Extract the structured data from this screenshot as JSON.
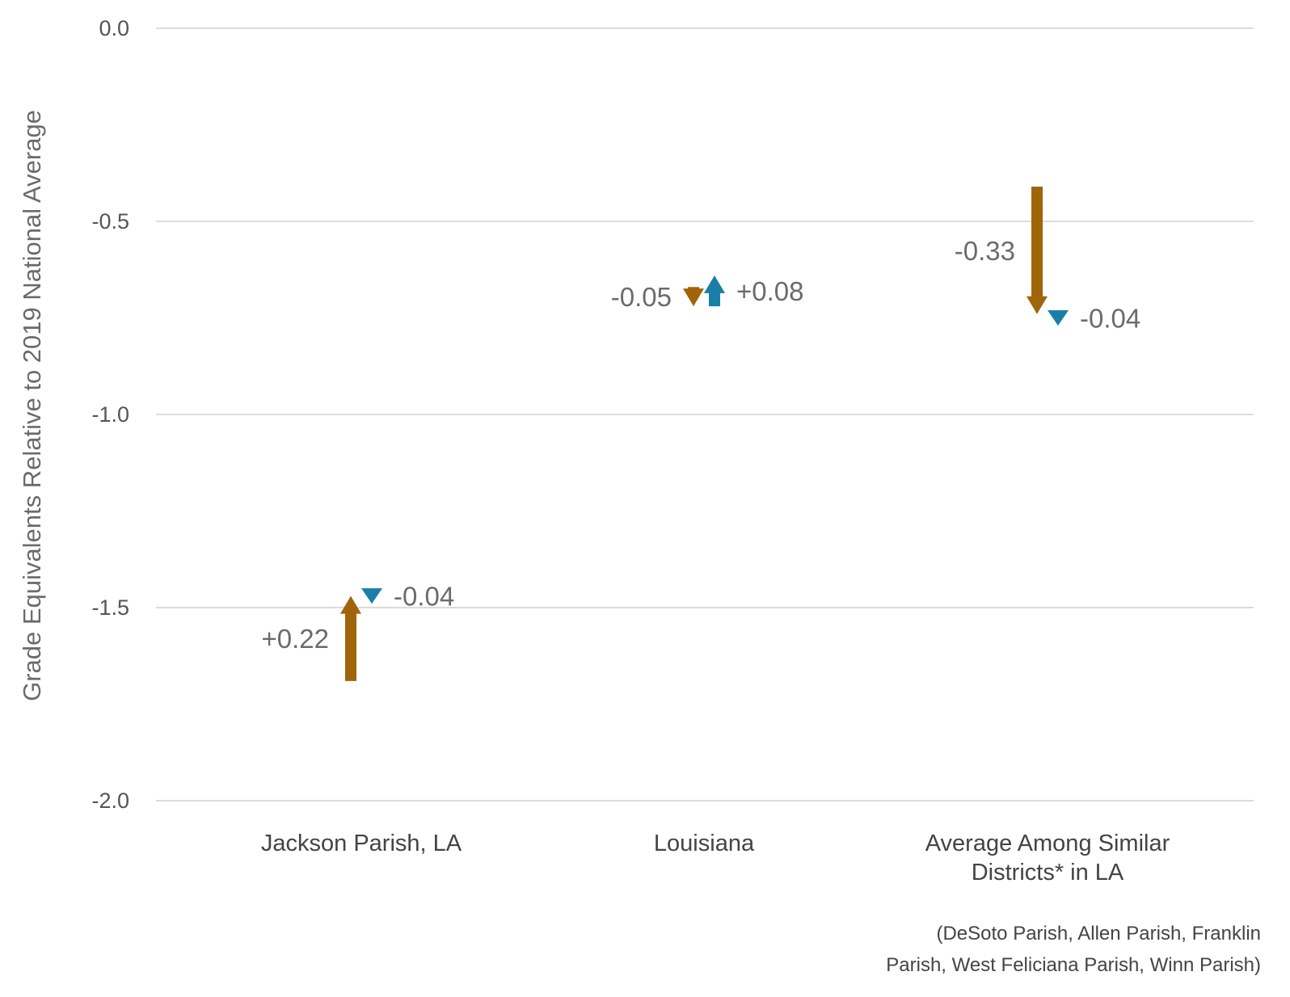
{
  "chart_data": {
    "type": "arrow",
    "ylabel": "Grade Equivalents Relative to 2019 National Average",
    "ylim": [
      -2.0,
      0.0
    ],
    "yticks": [
      {
        "value": 0.0,
        "label": "0.0"
      },
      {
        "value": -0.5,
        "label": "-0.5"
      },
      {
        "value": -1.0,
        "label": "-1.0"
      },
      {
        "value": -1.5,
        "label": "-1.5"
      },
      {
        "value": -2.0,
        "label": "-2.0"
      }
    ],
    "grid": true,
    "categories": [
      {
        "lines": [
          "Jackson Parish, LA"
        ]
      },
      {
        "lines": [
          "Louisiana"
        ]
      },
      {
        "lines": [
          "Average Among Similar",
          "Districts* in LA"
        ]
      }
    ],
    "footnote": [
      "(DeSoto Parish, Allen Parish, Franklin",
      "Parish, West Feliciana Parish, Winn Parish)"
    ],
    "series": [
      {
        "color": "#a0650a",
        "arrows": [
          {
            "category": 0,
            "start": -1.69,
            "end": -1.47,
            "label": "+0.22",
            "label_side": "left"
          },
          {
            "category": 1,
            "start": -0.67,
            "end": -0.72,
            "label": "-0.05",
            "label_side": "left"
          },
          {
            "category": 2,
            "start": -0.41,
            "end": -0.74,
            "label": "-0.33",
            "label_side": "left"
          }
        ]
      },
      {
        "color": "#1a7fa8",
        "arrows": [
          {
            "category": 0,
            "start": -1.45,
            "end": -1.49,
            "label": "-0.04",
            "label_side": "right"
          },
          {
            "category": 1,
            "start": -0.72,
            "end": -0.64,
            "label": "+0.08",
            "label_side": "right"
          },
          {
            "category": 2,
            "start": -0.73,
            "end": -0.77,
            "label": "-0.04",
            "label_side": "right"
          }
        ]
      }
    ]
  }
}
